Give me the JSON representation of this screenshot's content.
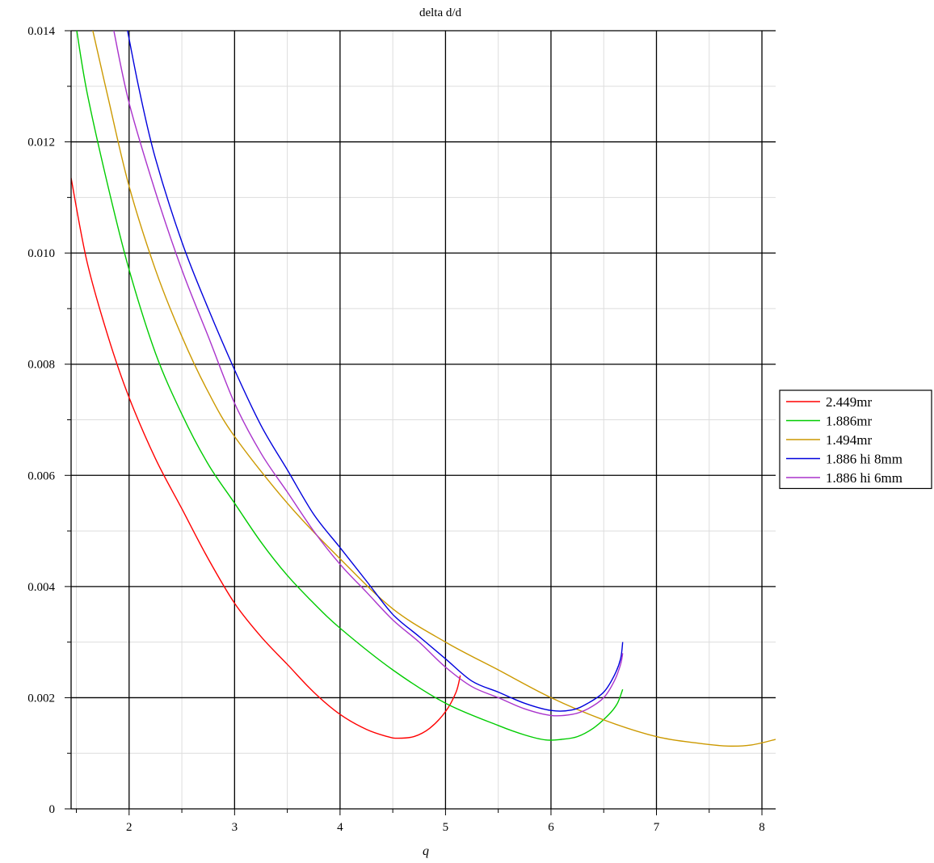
{
  "chart_data": {
    "type": "line",
    "title": "delta d/d",
    "xlabel": "q",
    "ylabel": "",
    "xlim": [
      1.45,
      8.13
    ],
    "ylim": [
      0,
      0.014
    ],
    "x_major_ticks": [
      2,
      3,
      4,
      5,
      6,
      7,
      8
    ],
    "x_minor_ticks": [
      1.5,
      2.5,
      3.5,
      4.5,
      5.5,
      6.5,
      7.5
    ],
    "y_major_ticks": [
      0,
      0.002,
      0.004,
      0.006,
      0.008,
      0.01,
      0.012,
      0.014
    ],
    "y_tick_labels": [
      "0",
      "0.002",
      "0.004",
      "0.006",
      "0.008",
      "0.010",
      "0.012",
      "0.014"
    ],
    "y_minor_ticks": [
      0.001,
      0.003,
      0.005,
      0.007,
      0.009,
      0.011,
      0.013
    ],
    "grid": true,
    "legend_position": "right",
    "series": [
      {
        "name": "2.449mr",
        "color": "#ff0000",
        "points": [
          [
            1.45,
            0.01135
          ],
          [
            1.6,
            0.00985
          ],
          [
            1.8,
            0.0085
          ],
          [
            2.0,
            0.0074
          ],
          [
            2.25,
            0.0063
          ],
          [
            2.5,
            0.0054
          ],
          [
            2.75,
            0.0045
          ],
          [
            3.0,
            0.0037
          ],
          [
            3.25,
            0.0031
          ],
          [
            3.5,
            0.0026
          ],
          [
            3.75,
            0.0021
          ],
          [
            4.0,
            0.0017
          ],
          [
            4.25,
            0.00143
          ],
          [
            4.45,
            0.0013
          ],
          [
            4.55,
            0.00127
          ],
          [
            4.7,
            0.0013
          ],
          [
            4.85,
            0.00145
          ],
          [
            5.0,
            0.00175
          ],
          [
            5.1,
            0.0021
          ],
          [
            5.14,
            0.0024
          ]
        ]
      },
      {
        "name": "1.886mr",
        "color": "#00cc00",
        "points": [
          [
            1.5,
            0.01405
          ],
          [
            1.6,
            0.0129
          ],
          [
            1.8,
            0.0112
          ],
          [
            2.0,
            0.0097
          ],
          [
            2.25,
            0.0082
          ],
          [
            2.5,
            0.0071
          ],
          [
            2.75,
            0.0062
          ],
          [
            3.0,
            0.0055
          ],
          [
            3.25,
            0.0048
          ],
          [
            3.5,
            0.0042
          ],
          [
            3.75,
            0.0037
          ],
          [
            4.0,
            0.00325
          ],
          [
            4.5,
            0.0025
          ],
          [
            5.0,
            0.0019
          ],
          [
            5.5,
            0.0015
          ],
          [
            5.75,
            0.00133
          ],
          [
            5.95,
            0.00124
          ],
          [
            6.1,
            0.00125
          ],
          [
            6.25,
            0.0013
          ],
          [
            6.4,
            0.00145
          ],
          [
            6.55,
            0.0017
          ],
          [
            6.63,
            0.0019
          ],
          [
            6.68,
            0.00215
          ]
        ]
      },
      {
        "name": "1.494mr",
        "color": "#cc9900",
        "points": [
          [
            1.65,
            0.01405
          ],
          [
            1.8,
            0.0128
          ],
          [
            2.0,
            0.0112
          ],
          [
            2.25,
            0.0097
          ],
          [
            2.5,
            0.0085
          ],
          [
            2.75,
            0.0075
          ],
          [
            3.0,
            0.0067
          ],
          [
            3.5,
            0.0055
          ],
          [
            4.0,
            0.0045
          ],
          [
            4.5,
            0.0036
          ],
          [
            5.0,
            0.003
          ],
          [
            5.5,
            0.0025
          ],
          [
            6.0,
            0.002
          ],
          [
            6.5,
            0.0016
          ],
          [
            7.0,
            0.0013
          ],
          [
            7.4,
            0.00118
          ],
          [
            7.68,
            0.00113
          ],
          [
            7.9,
            0.00115
          ],
          [
            8.13,
            0.00125
          ]
        ]
      },
      {
        "name": "1.886 hi 8mm",
        "color": "#0000dd",
        "points": [
          [
            1.98,
            0.01405
          ],
          [
            2.1,
            0.0129
          ],
          [
            2.25,
            0.0117
          ],
          [
            2.5,
            0.0102
          ],
          [
            2.75,
            0.009
          ],
          [
            3.0,
            0.0079
          ],
          [
            3.25,
            0.0069
          ],
          [
            3.5,
            0.0061
          ],
          [
            3.75,
            0.0053
          ],
          [
            4.0,
            0.0047
          ],
          [
            4.25,
            0.0041
          ],
          [
            4.5,
            0.0035
          ],
          [
            4.75,
            0.0031
          ],
          [
            5.0,
            0.0027
          ],
          [
            5.25,
            0.0023
          ],
          [
            5.5,
            0.0021
          ],
          [
            5.75,
            0.0019
          ],
          [
            6.0,
            0.00177
          ],
          [
            6.2,
            0.00178
          ],
          [
            6.35,
            0.0019
          ],
          [
            6.5,
            0.0021
          ],
          [
            6.6,
            0.0024
          ],
          [
            6.66,
            0.0027
          ],
          [
            6.68,
            0.003
          ]
        ]
      },
      {
        "name": "1.886 hi 6mm",
        "color": "#aa33cc",
        "points": [
          [
            1.85,
            0.01405
          ],
          [
            2.0,
            0.0127
          ],
          [
            2.25,
            0.0111
          ],
          [
            2.5,
            0.0097
          ],
          [
            2.75,
            0.0085
          ],
          [
            3.0,
            0.0073
          ],
          [
            3.25,
            0.0064
          ],
          [
            3.5,
            0.0057
          ],
          [
            3.75,
            0.005
          ],
          [
            4.0,
            0.0044
          ],
          [
            4.25,
            0.0039
          ],
          [
            4.5,
            0.0034
          ],
          [
            4.75,
            0.003
          ],
          [
            5.0,
            0.00255
          ],
          [
            5.25,
            0.0022
          ],
          [
            5.5,
            0.002
          ],
          [
            5.75,
            0.0018
          ],
          [
            6.0,
            0.00168
          ],
          [
            6.2,
            0.0017
          ],
          [
            6.35,
            0.0018
          ],
          [
            6.5,
            0.002
          ],
          [
            6.6,
            0.0023
          ],
          [
            6.66,
            0.0026
          ],
          [
            6.68,
            0.0028
          ]
        ]
      }
    ]
  }
}
